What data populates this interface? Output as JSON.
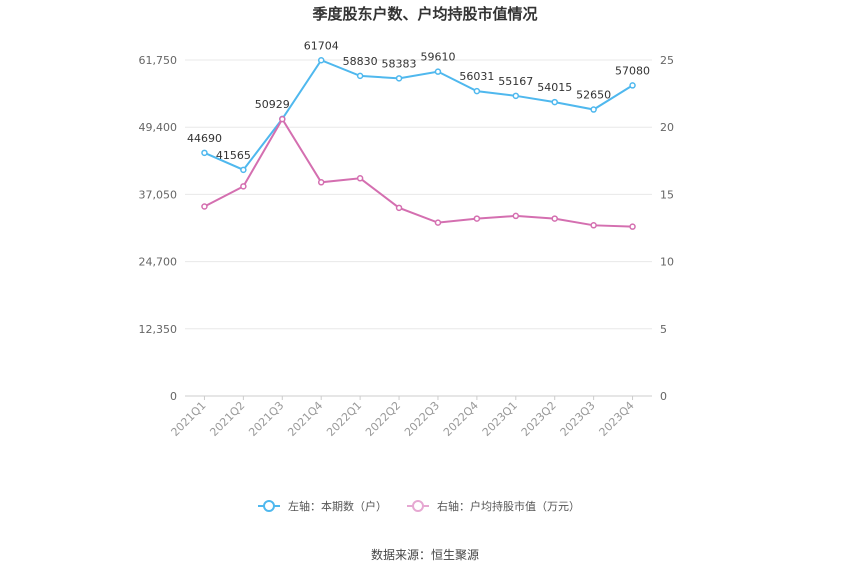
{
  "chart_data": {
    "type": "line",
    "title": "季度股东户数、户均持股市值情况",
    "categories": [
      "2021Q1",
      "2021Q2",
      "2021Q3",
      "2021Q4",
      "2022Q1",
      "2022Q2",
      "2022Q3",
      "2022Q4",
      "2023Q1",
      "2023Q2",
      "2023Q3",
      "2023Q4"
    ],
    "left_axis": {
      "min": 0,
      "max": 61750,
      "ticks": [
        "0",
        "12,350",
        "24,700",
        "37,050",
        "49,400",
        "61,750"
      ]
    },
    "right_axis": {
      "min": 0,
      "max": 25,
      "ticks": [
        "0",
        "5",
        "10",
        "15",
        "20",
        "25"
      ]
    },
    "series": [
      {
        "name": "左轴：本期数（户）",
        "axis": "left",
        "color": "#4fb8ee",
        "values": [
          44690,
          41565,
          50929,
          61704,
          58830,
          58383,
          59610,
          56031,
          55167,
          54015,
          52650,
          57080
        ],
        "labels": [
          "44690",
          "41565",
          "50929",
          "61704",
          "58830",
          "58383",
          "59610",
          "56031",
          "55167",
          "54015",
          "52650",
          "57080"
        ]
      },
      {
        "name": "右轴：户均持股市值（万元）",
        "axis": "right",
        "color": "#d46fb0",
        "values": [
          14.1,
          15.6,
          20.6,
          15.9,
          16.2,
          14.0,
          12.9,
          13.2,
          13.4,
          13.2,
          12.7,
          12.6
        ]
      }
    ],
    "grid": true,
    "legend_position": "bottom"
  },
  "source": "数据来源：恒生聚源"
}
